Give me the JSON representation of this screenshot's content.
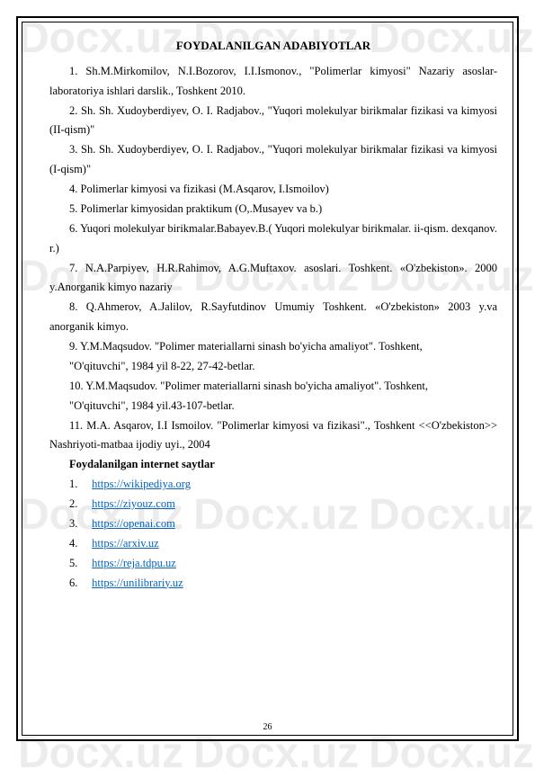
{
  "watermark_text": "Docx.uz",
  "title": "FOYDALANILGAN ADABIYOTLAR",
  "refs": [
    "1. Sh.M.Mirkomilov, N.I.Bozorov, I.I.Ismonov., \"Polimerlar kimyosi\" Nazariy asoslar-laboratoriya ishlari darslik., Toshkent 2010.",
    "2.  Sh. Sh. Xudoyberdiyev, O. I. Radjabov., \"Yuqori molekulyar birikmalar fizikasi va kimyosi (II-qism)\"",
    "3.  Sh. Sh. Xudoyberdiyev, O. I. Radjabov., \"Yuqori molekulyar birikmalar fizikasi va kimyosi (I-qism)\"",
    "4.  Polimerlar kimyosi va fizikasi (M.Asqarov, I.Ismoilov)",
    "5.  Polimerlar kimyosidan praktikum (O,.Musayev va b.)",
    "6.  Yuqori molekulyar birikmalar.Babayev.B.( Yuqori molekulyar birikmalar. ii-qism. dexqanov. r.)",
    "7.  N.A.Parpiyev,    H.R.Rahimov,    A.G.Muftaxov.    asoslari.    Toshkent. «O'zbekiston». 2000 y.Anorganik kimyo nazariy",
    "8.  Q.Ahmerov, A.Jalilov, R.Sayfutdinov Umumiy Toshkent. «O'zbekiston» 2003 y.va anorganik kimyo.",
    "9.  Y.M.Maqsudov.   \"Polimer   materiallarni   sinash   bo'yicha   amaliyot\". Toshkent,",
    "\"O'qituvchi\", 1984 yil 8-22, 27-42-betlar.",
    "10.  Y.M.Maqsudov.   \"Polimer   materiallarni   sinash   bo'yicha   amaliyot\". Toshkent,",
    "\"O'qituvchi\", 1984 yil.43-107-betlar.",
    "11.   M.A. Asqarov, I.I Ismoilov. \"Polimerlar kimyosi va fizikasi\"., Toshkent <<O'zbekiston>> Nashriyoti-matbaa ijodiy uyi., 2004"
  ],
  "subheading": "Foydalanilgan internet saytlar",
  "links": [
    {
      "num": "1.",
      "url": "https://wikipediya.org"
    },
    {
      "num": "2.",
      "url": "https://ziyouz.com"
    },
    {
      "num": "3.",
      "url": "https://openai.com"
    },
    {
      "num": "4.",
      "url": "https://arxiv.uz"
    },
    {
      "num": "5.",
      "url": "https://reja.tdpu.uz"
    },
    {
      "num": "6.",
      "url": "https://unilibrariy.uz"
    }
  ],
  "page_number": "26",
  "colors": {
    "link": "#0563c1",
    "text": "#000000",
    "watermark": "rgba(180,180,180,0.25)"
  }
}
